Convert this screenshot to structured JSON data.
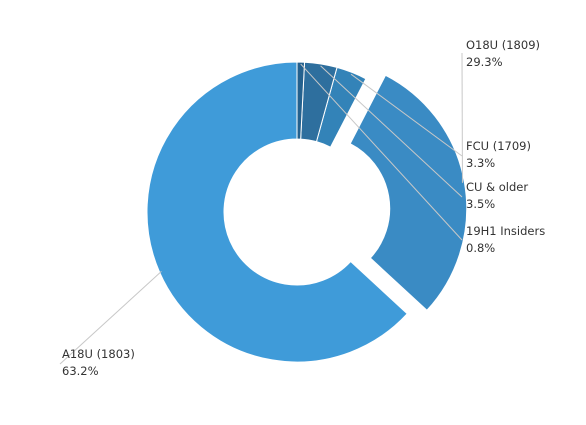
{
  "chart_data": {
    "type": "pie",
    "variant": "donut",
    "title": "",
    "start_angle_deg": 90,
    "direction": "counterclockwise",
    "exploded_slice": "O18U (1809)",
    "slices": [
      {
        "name": "A18U (1803)",
        "value": 63.2,
        "label_text": "63.2%",
        "color": "#3f9bd9"
      },
      {
        "name": "O18U (1809)",
        "value": 29.3,
        "label_text": "29.3%",
        "color": "#3a8bc4"
      },
      {
        "name": "FCU (1709)",
        "value": 3.3,
        "label_text": "3.3%",
        "color": "#3383b8"
      },
      {
        "name": "CU & older",
        "value": 3.5,
        "label_text": "3.5%",
        "color": "#2e6f9e"
      },
      {
        "name": "19H1 Insiders",
        "value": 0.8,
        "label_text": "0.8%",
        "color": "#24618e"
      }
    ]
  }
}
